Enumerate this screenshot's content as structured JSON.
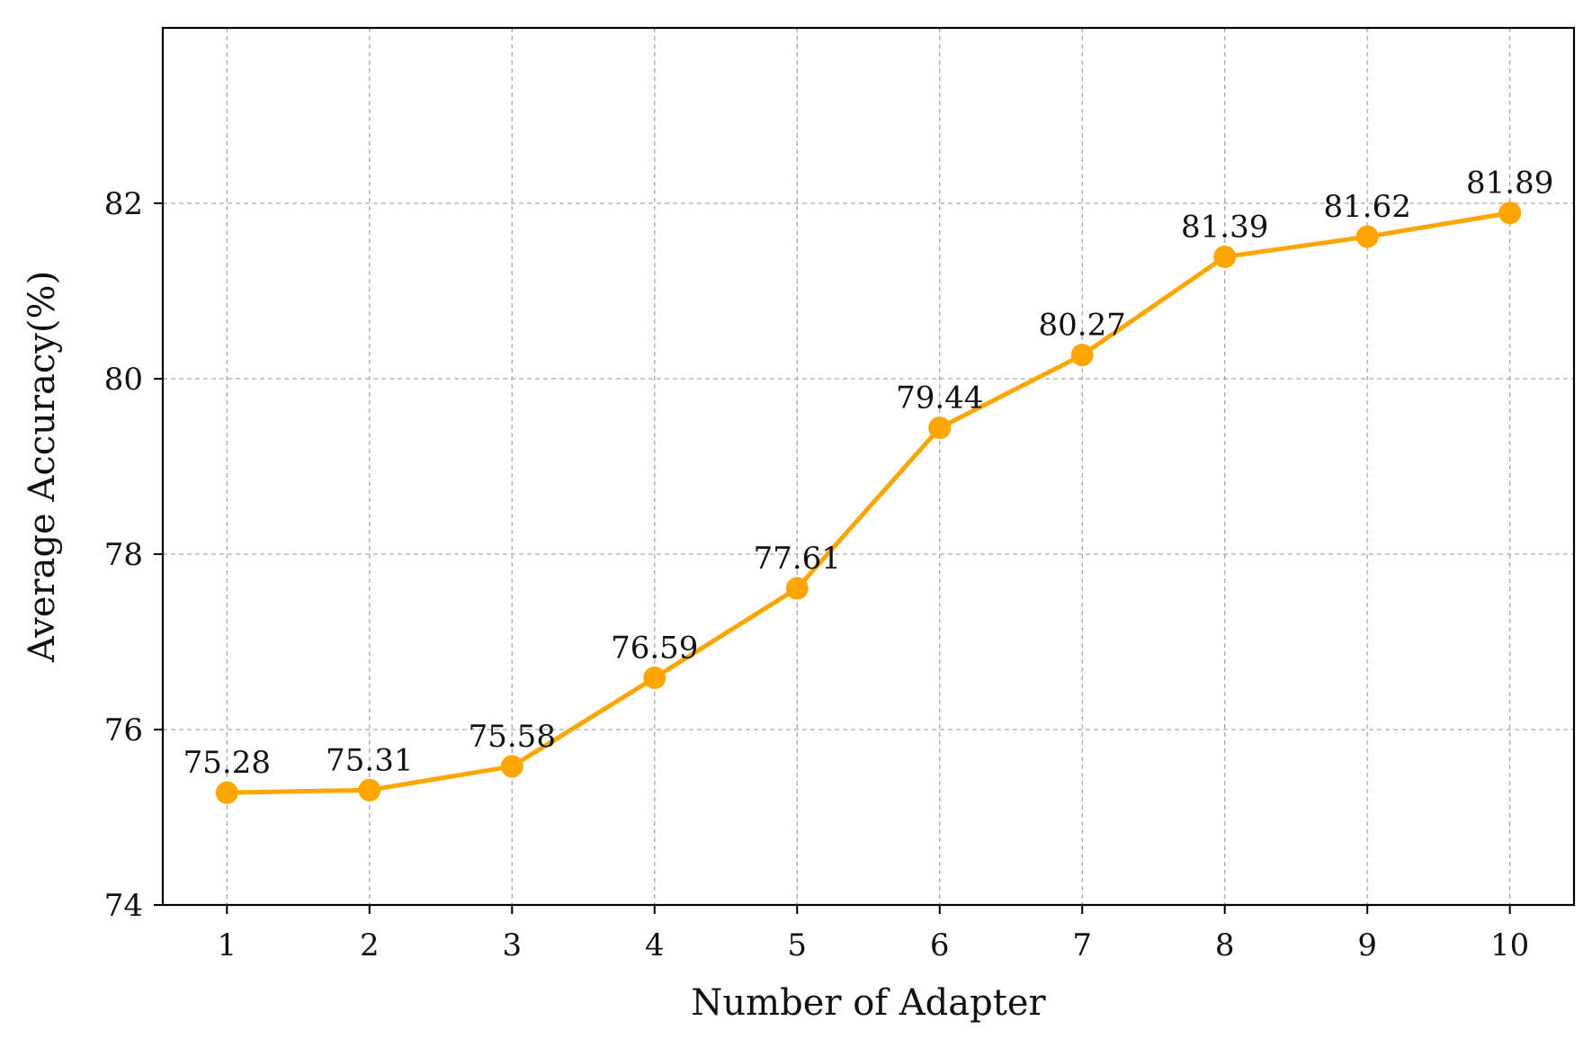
{
  "chart_data": {
    "type": "line",
    "title": "",
    "xlabel": "Number of Adapter",
    "ylabel": "Average Accuracy(%)",
    "x": [
      1,
      2,
      3,
      4,
      5,
      6,
      7,
      8,
      9,
      10
    ],
    "x_tick_labels": [
      "1",
      "2",
      "3",
      "4",
      "5",
      "6",
      "7",
      "8",
      "9",
      "10"
    ],
    "y_ticks": [
      74,
      76,
      78,
      80,
      82
    ],
    "y_tick_labels": [
      "74",
      "76",
      "78",
      "80",
      "82"
    ],
    "xlim": [
      0.55,
      10.45
    ],
    "ylim": [
      74,
      84
    ],
    "grid": true,
    "legend": "none",
    "series": [
      {
        "color": "#ffa500",
        "marker": "circle",
        "values": [
          75.28,
          75.31,
          75.58,
          76.59,
          77.61,
          79.44,
          80.27,
          81.39,
          81.62,
          81.89
        ],
        "data_labels": [
          "75.28",
          "75.31",
          "75.58",
          "76.59",
          "77.61",
          "79.44",
          "80.27",
          "81.39",
          "81.62",
          "81.89"
        ]
      }
    ]
  }
}
